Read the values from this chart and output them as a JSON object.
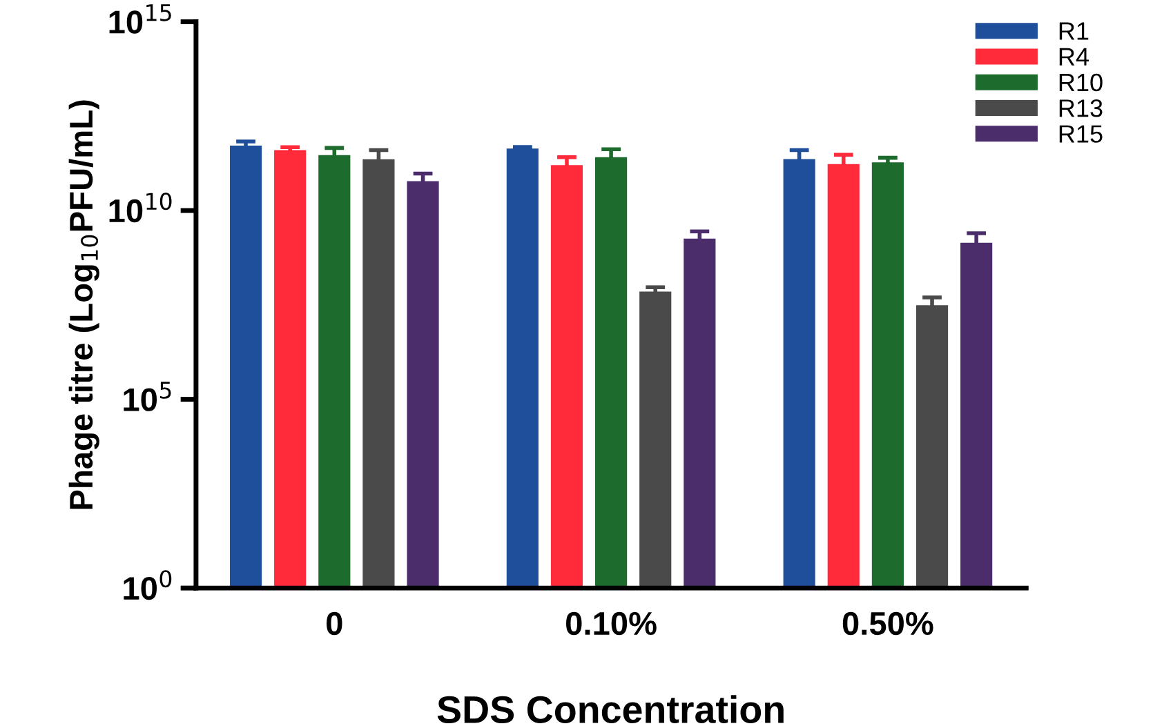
{
  "chart_data": {
    "type": "bar",
    "xlabel": "SDS Concentration",
    "ylabel": "Phage titre (Log$_{10}$PFU/mL)",
    "categories": [
      "0",
      "0.10%",
      "0.50%"
    ],
    "series": [
      {
        "name": "R1",
        "color": "#1f4e9a",
        "values": [
          525000000000.0,
          440000000000.0,
          230000000000.0
        ],
        "errors": [
          150000000000.0,
          40000000000.0,
          170000000000.0
        ]
      },
      {
        "name": "R4",
        "color": "#ff2b3a",
        "values": [
          398000000000.0,
          160000000000.0,
          170000000000.0
        ],
        "errors": [
          80000000000.0,
          100000000000.0,
          130000000000.0
        ]
      },
      {
        "name": "R10",
        "color": "#1e6b2e",
        "values": [
          295000000000.0,
          260000000000.0,
          190000000000.0
        ],
        "errors": [
          160000000000.0,
          160000000000.0,
          60000000000.0
        ]
      },
      {
        "name": "R13",
        "color": "#4a4a4a",
        "values": [
          229000000000.0,
          71000000.0,
          31000000.0
        ],
        "errors": [
          170000000000.0,
          22000000.0,
          19000000.0
        ]
      },
      {
        "name": "R15",
        "color": "#4b2d6b",
        "values": [
          60000000000.0,
          1800000000.0,
          1400000000.0
        ],
        "errors": [
          35000000000.0,
          1000000000.0,
          1100000000.0
        ]
      }
    ],
    "log": "y",
    "ylim": [
      1,
      1000000000000000.0
    ],
    "yticks": [
      {
        "value": 1,
        "label": "10$^{0}$"
      },
      {
        "value": 100000.0,
        "label": "10$^{5}$"
      },
      {
        "value": 10000000000.0,
        "label": "10$^{10}$"
      },
      {
        "value": 1000000000000000.0,
        "label": "10$^{15}$"
      }
    ],
    "legend": "top right",
    "grid": false
  }
}
